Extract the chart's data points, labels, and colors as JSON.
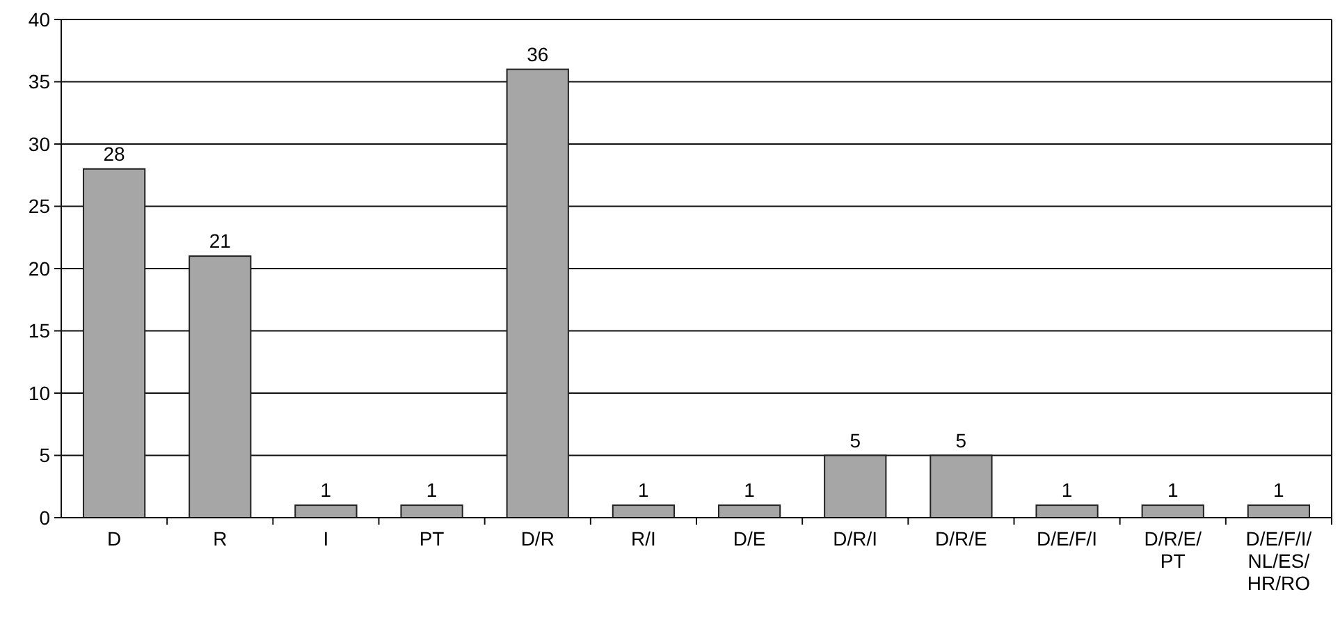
{
  "chart_data": {
    "type": "bar",
    "categories": [
      "D",
      "R",
      "I",
      "PT",
      "D/R",
      "R/I",
      "D/E",
      "D/R/I",
      "D/R/E",
      "D/E/F/I",
      "D/R/E/PT",
      "D/E/F/I/NL/ES/HR/RO"
    ],
    "values": [
      28,
      21,
      1,
      1,
      36,
      1,
      1,
      5,
      5,
      1,
      1,
      1
    ],
    "color": "#a6a6a6",
    "ylim": [
      0,
      40
    ],
    "yticks": [
      0,
      5,
      10,
      15,
      20,
      25,
      30,
      35,
      40
    ],
    "grid": "y",
    "data_labels": true
  }
}
